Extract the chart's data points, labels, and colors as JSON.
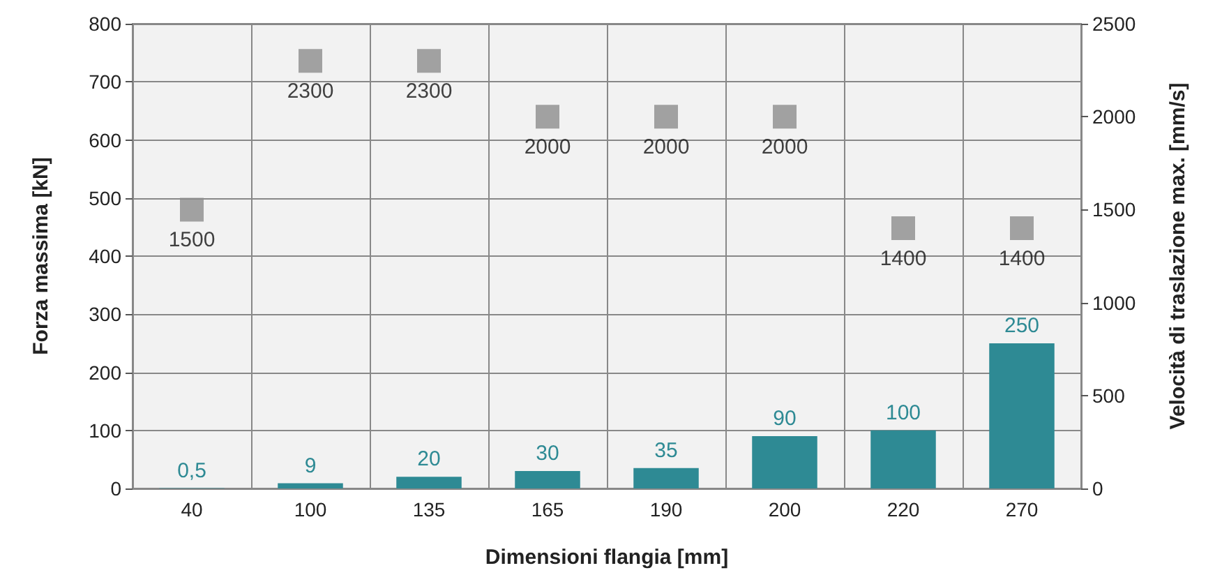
{
  "chart_data": {
    "type": "bar",
    "xlabel": "Dimensioni flangia [mm]",
    "ylabel": "Forza massima [kN]",
    "y2label": "Velocità di traslazione max. [mm/s]",
    "categories": [
      "40",
      "100",
      "135",
      "165",
      "190",
      "200",
      "220",
      "270"
    ],
    "series": [
      {
        "color": "#2e8a94",
        "values": [
          0.5,
          9,
          20,
          30,
          35,
          90,
          100,
          250
        ],
        "value_labels": [
          "0,5",
          "9",
          "20",
          "30",
          "35",
          "90",
          "100",
          "250"
        ]
      },
      {
        "type": "scatter",
        "axis": "y2",
        "marker": "square",
        "color": "#8c8c8c",
        "values": [
          1500,
          2300,
          2300,
          2000,
          2000,
          2000,
          1400,
          1400
        ],
        "value_labels": [
          "1500",
          "2300",
          "2300",
          "2000",
          "2000",
          "2000",
          "1400",
          "1400"
        ]
      }
    ],
    "ylim": [
      0,
      800
    ],
    "yticks": [
      0,
      100,
      200,
      300,
      400,
      500,
      600,
      700,
      800
    ],
    "y2lim": [
      0,
      2500
    ],
    "y2ticks": [
      0,
      500,
      1000,
      1500,
      2000,
      2500
    ],
    "grid": true
  }
}
